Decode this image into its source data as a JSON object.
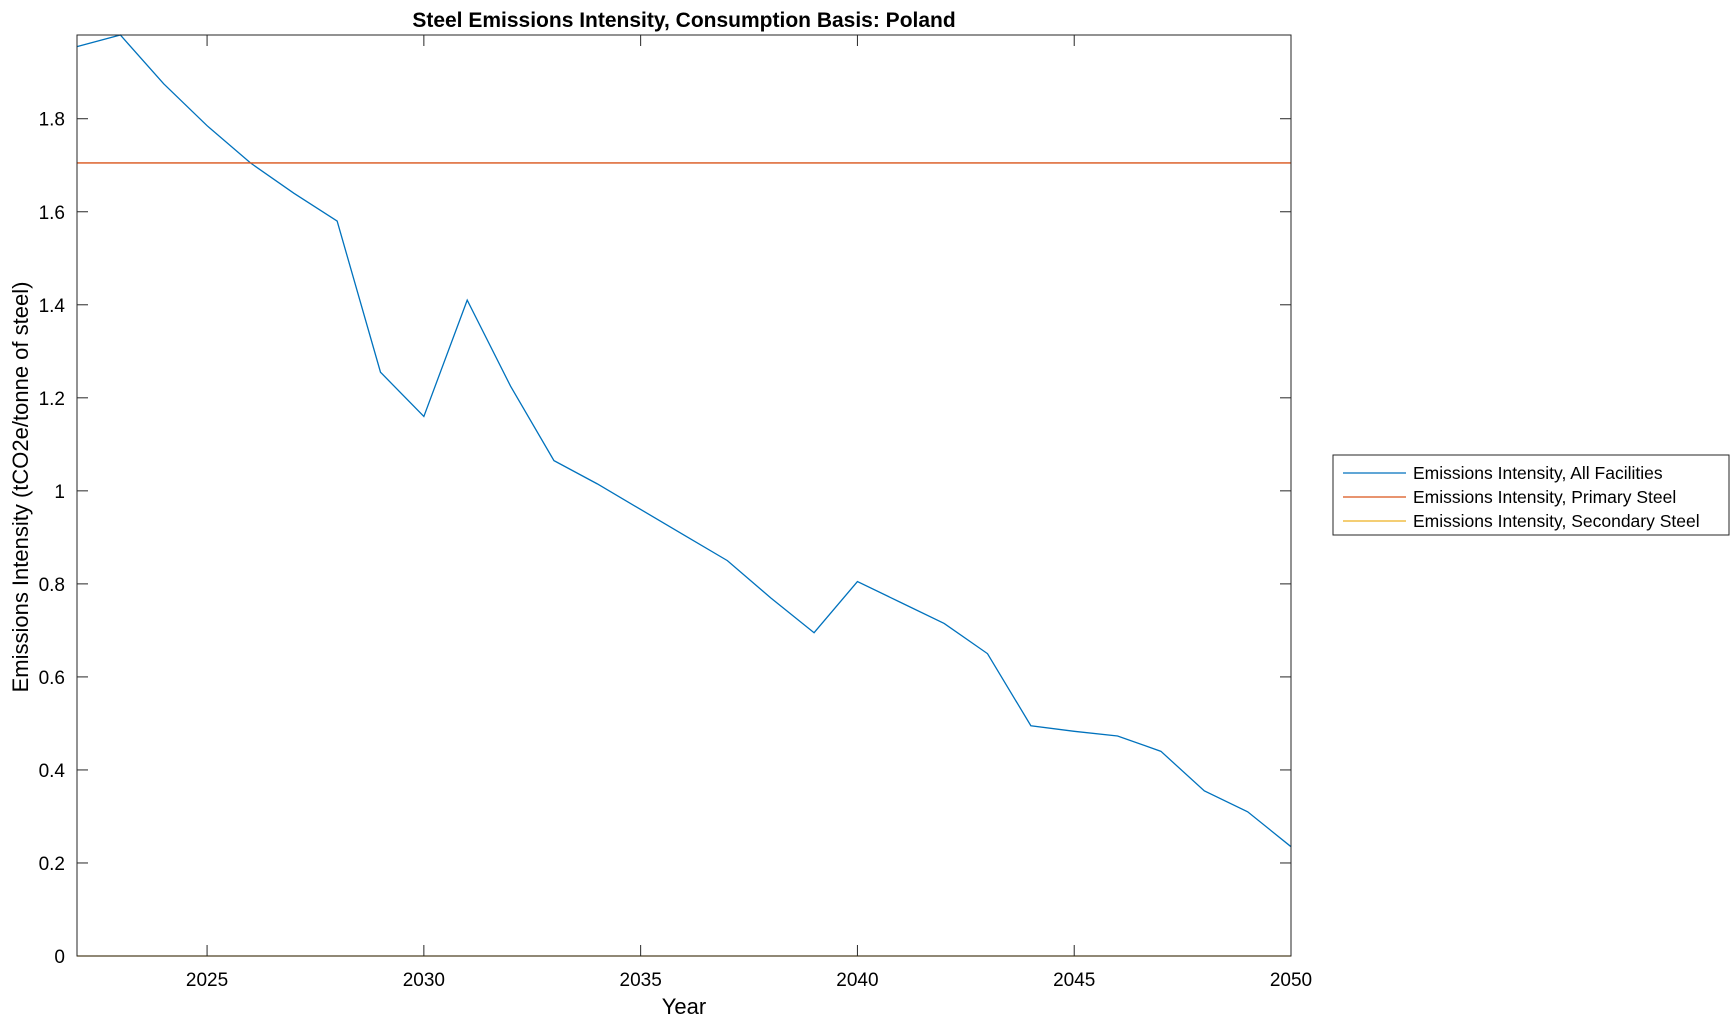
{
  "chart_data": {
    "type": "line",
    "title": "Steel Emissions Intensity, Consumption Basis: Poland",
    "xlabel": "Year",
    "ylabel": "Emissions Intensity (tCO2e/tonne of steel)",
    "xlim": [
      2022,
      2050
    ],
    "ylim": [
      0,
      1.98
    ],
    "xticks": [
      2025,
      2030,
      2035,
      2040,
      2045,
      2050
    ],
    "xtick_labels": [
      "2025",
      "2030",
      "2035",
      "2040",
      "2045",
      "2050"
    ],
    "yticks": [
      0,
      0.2,
      0.4,
      0.6,
      0.8,
      1,
      1.2,
      1.4,
      1.6,
      1.8
    ],
    "ytick_labels": [
      "0",
      "0.2",
      "0.4",
      "0.6",
      "0.8",
      "1",
      "1.2",
      "1.4",
      "1.6",
      "1.8"
    ],
    "grid": false,
    "legend_position": "outside-right",
    "series": [
      {
        "name": "Emissions Intensity, All Facilities",
        "color": "#0072BD",
        "x": [
          2022,
          2023,
          2024,
          2025,
          2026,
          2027,
          2028,
          2029,
          2030,
          2031,
          2032,
          2033,
          2034,
          2035,
          2036,
          2037,
          2038,
          2039,
          2040,
          2041,
          2042,
          2043,
          2044,
          2045,
          2046,
          2047,
          2048,
          2049,
          2050
        ],
        "y": [
          1.955,
          1.98,
          1.875,
          1.785,
          1.705,
          1.64,
          1.58,
          1.255,
          1.16,
          1.41,
          1.225,
          1.065,
          1.015,
          0.96,
          0.905,
          0.85,
          0.77,
          0.695,
          0.805,
          0.76,
          0.715,
          0.65,
          0.495,
          0.483,
          0.473,
          0.44,
          0.355,
          0.31,
          0.235
        ]
      },
      {
        "name": "Emissions Intensity, Primary Steel",
        "color": "#D95319",
        "x": [
          2022,
          2050
        ],
        "y": [
          1.705,
          1.705
        ]
      },
      {
        "name": "Emissions Intensity, Secondary Steel",
        "color": "#EDB120",
        "x": [
          2022,
          2050
        ],
        "y": [
          0,
          0
        ]
      }
    ]
  }
}
